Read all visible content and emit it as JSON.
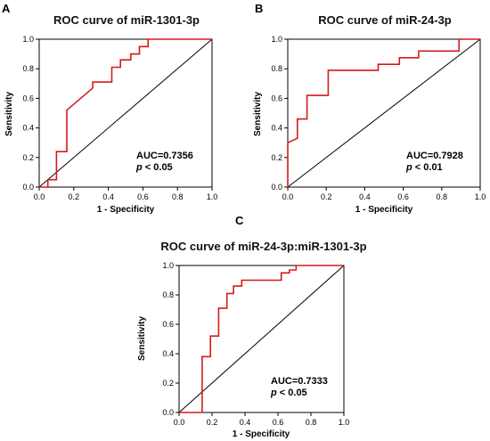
{
  "chart_data": [
    {
      "type": "line",
      "panel_label": "A",
      "title": "ROC curve of miR-1301-3p",
      "xlabel": "1 - Specificity",
      "ylabel": "Sensitivity",
      "xlim": [
        0,
        1
      ],
      "ylim": [
        0,
        1
      ],
      "xticks": [
        "0.0",
        "0.2",
        "0.4",
        "0.6",
        "0.8",
        "1.0"
      ],
      "yticks": [
        "0.0",
        "0.2",
        "0.4",
        "0.6",
        "0.8",
        "1.0"
      ],
      "grid": false,
      "auc_text": "AUC=0.7356",
      "p_symbol": "p",
      "p_text": " < 0.05",
      "colors": {
        "roc": "#d7191c",
        "reference": "#000000"
      },
      "series": [
        {
          "x": [
            0,
            0.05,
            0.05,
            0.1,
            0.1,
            0.16,
            0.16,
            0.31,
            0.31,
            0.42,
            0.42,
            0.47,
            0.47,
            0.53,
            0.53,
            0.58,
            0.58,
            0.63,
            0.63,
            0.68,
            0.68,
            1.0
          ],
          "y": [
            0,
            0,
            0.05,
            0.05,
            0.24,
            0.24,
            0.52,
            0.67,
            0.71,
            0.71,
            0.81,
            0.81,
            0.86,
            0.86,
            0.9,
            0.9,
            0.95,
            0.95,
            1.0,
            1.0,
            1.0,
            1.0
          ]
        }
      ]
    },
    {
      "type": "line",
      "panel_label": "B",
      "title": "ROC curve of miR-24-3p",
      "xlabel": "1 - Specificity",
      "ylabel": "Sensitivity",
      "xlim": [
        0,
        1
      ],
      "ylim": [
        0,
        1
      ],
      "xticks": [
        "0.0",
        "0.2",
        "0.4",
        "0.6",
        "0.8",
        "1.0"
      ],
      "yticks": [
        "0.0",
        "0.2",
        "0.4",
        "0.6",
        "0.8",
        "1.0"
      ],
      "grid": false,
      "auc_text": "AUC=0.7928",
      "p_symbol": "p",
      "p_text": " < 0.01",
      "colors": {
        "roc": "#d7191c",
        "reference": "#000000"
      },
      "series": [
        {
          "x": [
            0,
            0,
            0.05,
            0.05,
            0.1,
            0.1,
            0.21,
            0.21,
            0.47,
            0.47,
            0.58,
            0.58,
            0.68,
            0.68,
            0.89,
            0.89,
            1.0
          ],
          "y": [
            0,
            0.3,
            0.33,
            0.46,
            0.46,
            0.62,
            0.62,
            0.79,
            0.79,
            0.83,
            0.83,
            0.875,
            0.875,
            0.92,
            0.92,
            1.0,
            1.0
          ]
        }
      ]
    },
    {
      "type": "line",
      "panel_label": "C",
      "title": "ROC curve of miR-24-3p:miR-1301-3p",
      "xlabel": "1 - Specificity",
      "ylabel": "Sensitivity",
      "xlim": [
        0,
        1
      ],
      "ylim": [
        0,
        1
      ],
      "xticks": [
        "0.0",
        "0.2",
        "0.4",
        "0.6",
        "0.8",
        "1.0"
      ],
      "yticks": [
        "0.0",
        "0.2",
        "0.4",
        "0.6",
        "0.8",
        "1.0"
      ],
      "grid": false,
      "auc_text": "AUC=0.7333",
      "p_symbol": "p",
      "p_text": " < 0.05",
      "colors": {
        "roc": "#d7191c",
        "reference": "#000000"
      },
      "series": [
        {
          "x": [
            0,
            0.14,
            0.14,
            0.19,
            0.19,
            0.24,
            0.24,
            0.29,
            0.29,
            0.33,
            0.33,
            0.38,
            0.38,
            0.43,
            0.43,
            0.52,
            0.62,
            0.62,
            0.67,
            0.67,
            0.71,
            0.71,
            1.0
          ],
          "y": [
            0,
            0,
            0.38,
            0.38,
            0.52,
            0.52,
            0.71,
            0.71,
            0.81,
            0.81,
            0.86,
            0.86,
            0.9,
            0.9,
            0.9,
            0.9,
            0.9,
            0.95,
            0.95,
            0.97,
            0.97,
            1.0,
            1.0
          ]
        }
      ]
    }
  ]
}
